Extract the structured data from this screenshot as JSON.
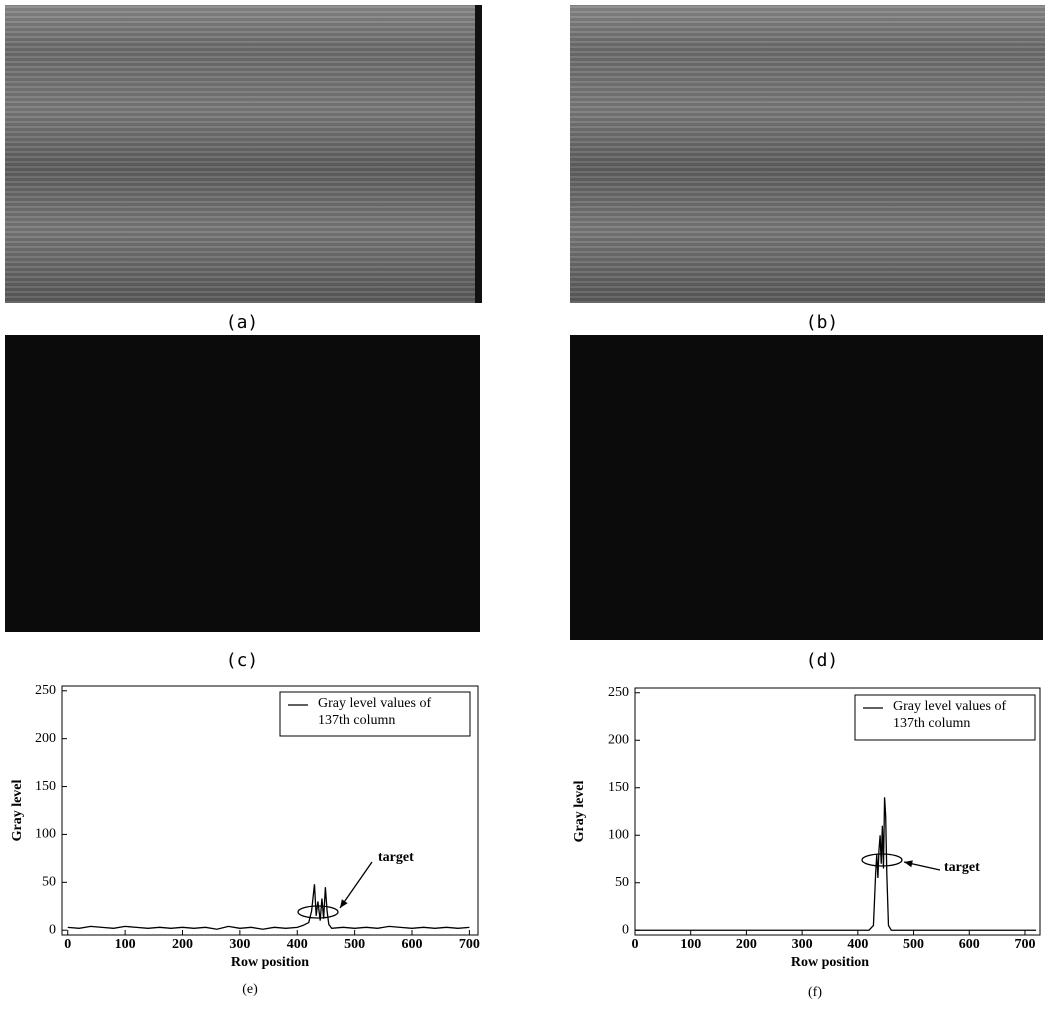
{
  "captions": [
    "(a)",
    "(b)",
    "(c)",
    "(d)"
  ],
  "chart_data": [
    {
      "type": "line",
      "caption": "(e)",
      "xlabel": "Row position",
      "ylabel": "Gray level",
      "annotation": "target",
      "xlim": [
        -10,
        715
      ],
      "ylim": [
        -5,
        255
      ],
      "xticks": [
        0,
        100,
        200,
        300,
        400,
        500,
        600,
        700
      ],
      "yticks": [
        0,
        50,
        100,
        150,
        200,
        250
      ],
      "series": [
        {
          "name": "Gray level values of 137th column",
          "color": "#000000",
          "x": [
            0,
            20,
            40,
            60,
            80,
            100,
            120,
            140,
            160,
            180,
            200,
            220,
            240,
            260,
            280,
            300,
            320,
            340,
            360,
            380,
            400,
            410,
            420,
            425,
            430,
            433,
            436,
            440,
            443,
            446,
            449,
            452,
            455,
            460,
            480,
            500,
            520,
            540,
            560,
            580,
            600,
            620,
            640,
            660,
            680,
            700
          ],
          "values": [
            3,
            2,
            4,
            3,
            2,
            4,
            3,
            2,
            3,
            2,
            3,
            2,
            3,
            1,
            4,
            2,
            3,
            1,
            3,
            2,
            3,
            5,
            8,
            20,
            48,
            15,
            30,
            10,
            33,
            12,
            45,
            20,
            6,
            2,
            3,
            2,
            3,
            2,
            4,
            3,
            2,
            3,
            2,
            3,
            2,
            3
          ]
        }
      ]
    },
    {
      "type": "line",
      "caption": "(f)",
      "xlabel": "Row position",
      "ylabel": "Gray level",
      "annotation": "target",
      "xlim": [
        0,
        727
      ],
      "ylim": [
        -5,
        255
      ],
      "xticks": [
        0,
        100,
        200,
        300,
        400,
        500,
        600,
        700
      ],
      "yticks": [
        0,
        50,
        100,
        150,
        200,
        250
      ],
      "series": [
        {
          "name": "Gray level values of 137th column",
          "color": "#000000",
          "x": [
            0,
            50,
            100,
            150,
            200,
            250,
            300,
            350,
            400,
            420,
            428,
            432,
            434,
            436,
            438,
            440,
            442,
            444,
            446,
            448,
            450,
            452,
            455,
            460,
            500,
            550,
            600,
            650,
            700,
            720
          ],
          "values": [
            0,
            0,
            0,
            0,
            0,
            0,
            0,
            0,
            0,
            0,
            5,
            60,
            80,
            55,
            85,
            100,
            70,
            110,
            65,
            140,
            120,
            60,
            5,
            0,
            0,
            0,
            0,
            0,
            0,
            0
          ]
        }
      ]
    }
  ]
}
